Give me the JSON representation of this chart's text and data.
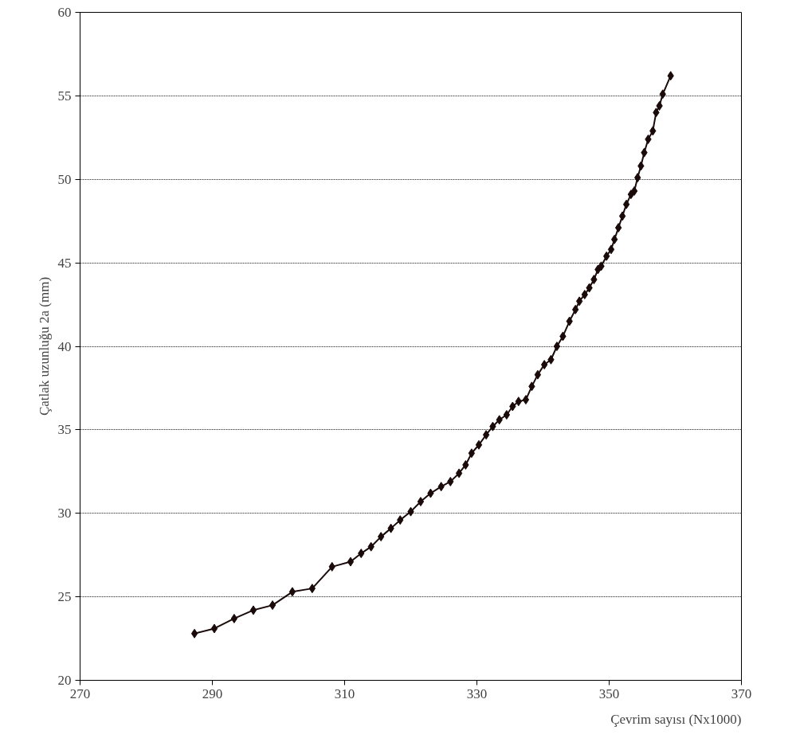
{
  "chart_data": {
    "type": "line",
    "xlabel": "Çevrim sayısı (Nx1000)",
    "ylabel": "Çatlak uzunluğu 2a (mm)",
    "x": [
      287.3,
      290.3,
      293.3,
      296.2,
      299.1,
      302.1,
      305.1,
      308.1,
      310.9,
      312.5,
      314.0,
      315.5,
      317.0,
      318.4,
      320.0,
      321.5,
      323.0,
      324.6,
      326.0,
      327.3,
      328.3,
      329.2,
      330.3,
      331.4,
      332.4,
      333.4,
      334.5,
      335.4,
      336.3,
      337.4,
      338.3,
      339.2,
      340.2,
      341.2,
      342.1,
      343.0,
      344.0,
      344.9,
      345.5,
      346.3,
      347.0,
      347.7,
      348.3,
      348.8,
      349.6,
      350.3,
      350.8,
      351.4,
      352.0,
      352.6,
      353.3,
      353.8,
      354.3,
      354.8,
      355.3,
      355.9,
      356.6,
      357.1,
      357.6,
      358.1,
      359.3
    ],
    "series": [
      {
        "color": "#1a0a0a",
        "values": [
          22.8,
          23.1,
          23.7,
          24.2,
          24.5,
          25.3,
          25.5,
          26.8,
          27.1,
          27.6,
          28.0,
          28.6,
          29.1,
          29.6,
          30.1,
          30.7,
          31.2,
          31.6,
          31.9,
          32.4,
          32.9,
          33.6,
          34.1,
          34.7,
          35.2,
          35.6,
          35.9,
          36.4,
          36.7,
          36.8,
          37.6,
          38.3,
          38.9,
          39.2,
          40.0,
          40.6,
          41.5,
          42.2,
          42.7,
          43.1,
          43.5,
          44.0,
          44.6,
          44.8,
          45.4,
          45.8,
          46.4,
          47.1,
          47.8,
          48.5,
          49.1,
          49.3,
          50.1,
          50.8,
          51.6,
          52.4,
          52.9,
          54.0,
          54.4,
          55.1,
          56.2
        ]
      }
    ],
    "xlim": [
      270,
      370
    ],
    "xticks": [
      270,
      290,
      310,
      330,
      350,
      370
    ],
    "ylim": [
      20,
      60
    ],
    "yticks": [
      20,
      25,
      30,
      35,
      40,
      45,
      50,
      55,
      60
    ],
    "grid": "y",
    "marker": "diamond",
    "line_style": "solid"
  }
}
